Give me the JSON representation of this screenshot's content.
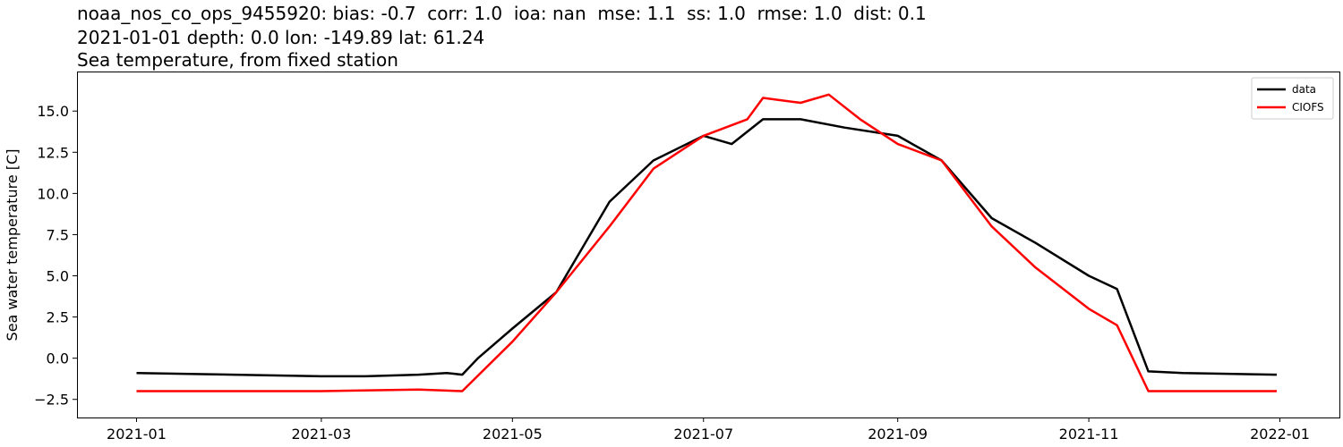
{
  "chart_data": {
    "type": "line",
    "title_lines": [
      "noaa_nos_co_ops_9455920: bias: -0.7  corr: 1.0  ioa: nan  mse: 1.1  ss: 1.0  rmse: 1.0  dist: 0.1",
      "2021-01-01 depth: 0.0 lon: -149.89 lat: 61.24",
      "Sea temperature, from fixed station"
    ],
    "xlabel": "",
    "ylabel": "Sea water temperature [C]",
    "xlim": [
      "2020-12-13",
      "2022-01-20"
    ],
    "ylim": [
      -3.6,
      17.4
    ],
    "xticks": [
      "2021-01",
      "2021-03",
      "2021-05",
      "2021-07",
      "2021-09",
      "2021-11",
      "2022-01"
    ],
    "yticks": [
      -2.5,
      0.0,
      2.5,
      5.0,
      7.5,
      10.0,
      12.5,
      15.0
    ],
    "ytick_labels": [
      "−2.5",
      "0.0",
      "2.5",
      "5.0",
      "7.5",
      "10.0",
      "12.5",
      "15.0"
    ],
    "legend_position": "upper right",
    "grid": false,
    "series": [
      {
        "name": "data",
        "color": "#000000",
        "points": [
          [
            "2021-01-01",
            -0.9
          ],
          [
            "2021-02-01",
            -1.0
          ],
          [
            "2021-03-01",
            -1.1
          ],
          [
            "2021-03-15",
            -1.1
          ],
          [
            "2021-04-01",
            -1.0
          ],
          [
            "2021-04-10",
            -0.9
          ],
          [
            "2021-04-15",
            -1.0
          ],
          [
            "2021-04-20",
            0.0
          ],
          [
            "2021-05-01",
            1.8
          ],
          [
            "2021-05-15",
            4.0
          ],
          [
            "2021-06-01",
            9.5
          ],
          [
            "2021-06-15",
            12.0
          ],
          [
            "2021-07-01",
            13.5
          ],
          [
            "2021-07-10",
            13.0
          ],
          [
            "2021-07-20",
            14.5
          ],
          [
            "2021-08-01",
            14.5
          ],
          [
            "2021-08-15",
            14.0
          ],
          [
            "2021-09-01",
            13.5
          ],
          [
            "2021-09-15",
            12.0
          ],
          [
            "2021-10-01",
            8.5
          ],
          [
            "2021-10-15",
            7.0
          ],
          [
            "2021-11-01",
            5.0
          ],
          [
            "2021-11-10",
            4.2
          ],
          [
            "2021-11-20",
            -0.8
          ],
          [
            "2021-12-01",
            -0.9
          ],
          [
            "2021-12-31",
            -1.0
          ]
        ]
      },
      {
        "name": "CIOFS",
        "color": "#ff0000",
        "points": [
          [
            "2021-01-01",
            -2.0
          ],
          [
            "2021-02-01",
            -2.0
          ],
          [
            "2021-03-01",
            -2.0
          ],
          [
            "2021-04-01",
            -1.9
          ],
          [
            "2021-04-15",
            -2.0
          ],
          [
            "2021-05-01",
            1.0
          ],
          [
            "2021-05-15",
            4.0
          ],
          [
            "2021-06-01",
            8.0
          ],
          [
            "2021-06-15",
            11.5
          ],
          [
            "2021-07-01",
            13.5
          ],
          [
            "2021-07-15",
            14.5
          ],
          [
            "2021-07-20",
            15.8
          ],
          [
            "2021-08-01",
            15.5
          ],
          [
            "2021-08-10",
            16.0
          ],
          [
            "2021-08-20",
            14.5
          ],
          [
            "2021-09-01",
            13.0
          ],
          [
            "2021-09-15",
            12.0
          ],
          [
            "2021-10-01",
            8.0
          ],
          [
            "2021-10-15",
            5.5
          ],
          [
            "2021-11-01",
            3.0
          ],
          [
            "2021-11-10",
            2.0
          ],
          [
            "2021-11-20",
            -2.0
          ],
          [
            "2021-12-31",
            -2.0
          ]
        ]
      }
    ]
  }
}
